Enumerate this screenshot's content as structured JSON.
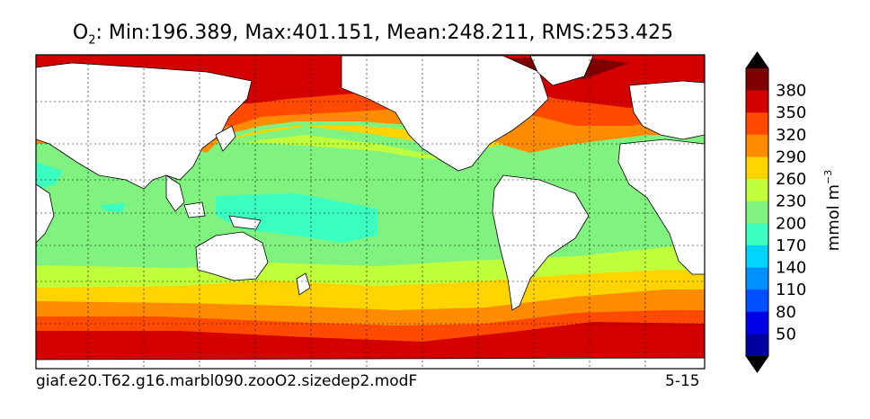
{
  "title": {
    "variable": "O",
    "subscript": "2",
    "stats": ": Min:196.389, Max:401.151, Mean:248.211, RMS:253.425"
  },
  "footer": {
    "case_name": "giaf.e20.T62.g16.marbl090.zooO2.sizedep2.modF",
    "depth_range": "5-15"
  },
  "colorbar": {
    "unit_label": "mmol m",
    "unit_exponent": "−3",
    "ticks": [
      "380",
      "350",
      "320",
      "290",
      "260",
      "230",
      "200",
      "170",
      "140",
      "110",
      "80",
      "50"
    ],
    "colors_top_to_bottom": [
      "#000000",
      "#7f0000",
      "#d40000",
      "#ff4a00",
      "#ff8c00",
      "#ffd400",
      "#bfff3b",
      "#7ff27f",
      "#3bffc0",
      "#00d4ff",
      "#0090ff",
      "#0050ff",
      "#0000e8",
      "#0000a0",
      "#000000"
    ],
    "extend": "both"
  },
  "map": {
    "land_color": "#ffffff",
    "grid": "dashed",
    "colors": {
      "c200": "#7ff27f",
      "c185": "#3bffc0",
      "c230": "#bfff3b",
      "c260": "#ffd400",
      "c290": "#ff8c00",
      "c320": "#ff4a00",
      "c350": "#d40000",
      "c380": "#7f0000"
    }
  }
}
